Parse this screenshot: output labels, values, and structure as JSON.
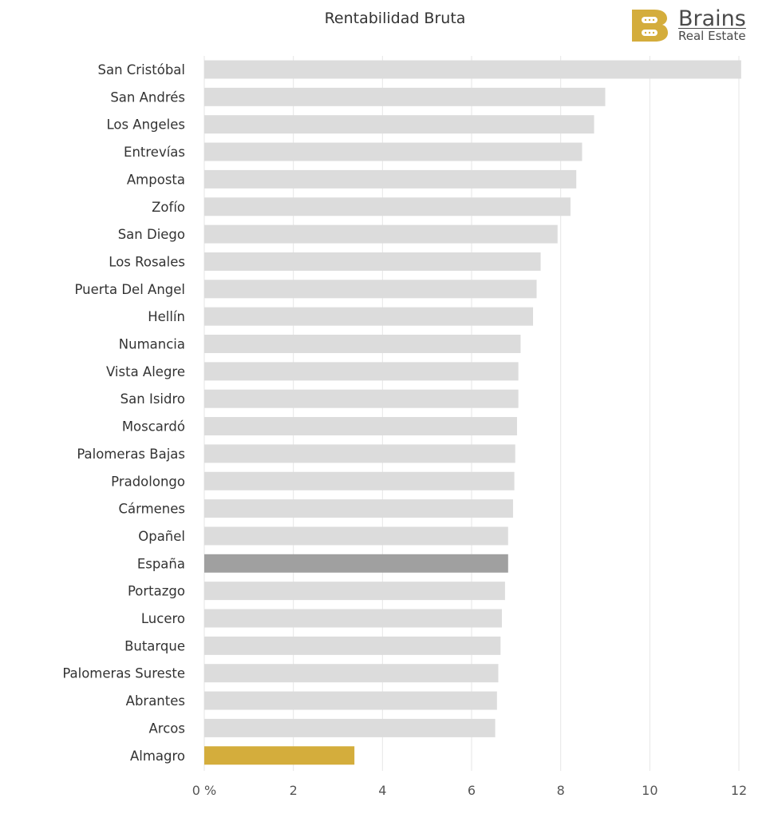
{
  "header": {
    "logo_name": "Brains",
    "logo_sub": "Real Estate",
    "logo_color": "#d4ad3c"
  },
  "chart_data": {
    "type": "bar",
    "orientation": "horizontal",
    "title": "Rentabilidad Bruta",
    "xlabel": "",
    "ylabel": "",
    "xlim": [
      0,
      12
    ],
    "ticks": [
      0,
      2,
      4,
      6,
      8,
      10,
      12
    ],
    "tick_labels": [
      "0 %",
      "2",
      "4",
      "6",
      "8",
      "10",
      "12"
    ],
    "grid": true,
    "legend": "none",
    "categories": [
      "San Cristóbal",
      "San Andrés",
      "Los Angeles",
      "Entrevías",
      "Amposta",
      "Zofío",
      "San Diego",
      "Los Rosales",
      "Puerta Del Angel",
      "Hellín",
      "Numancia",
      "Vista Alegre",
      "San Isidro",
      "Moscardó",
      "Palomeras Bajas",
      "Pradolongo",
      "Cármenes",
      "Opañel",
      "España",
      "Portazgo",
      "Lucero",
      "Butarque",
      "Palomeras Sureste",
      "Abrantes",
      "Arcos",
      "Almagro"
    ],
    "values": [
      12.05,
      9.0,
      8.75,
      8.48,
      8.35,
      8.22,
      7.93,
      7.55,
      7.46,
      7.38,
      7.1,
      7.05,
      7.05,
      7.02,
      6.98,
      6.96,
      6.93,
      6.82,
      6.82,
      6.75,
      6.68,
      6.65,
      6.6,
      6.57,
      6.53,
      3.37
    ],
    "colors": {
      "default": "#dcdcdc",
      "highlight_espana": "#a0a0a0",
      "highlight_almagro": "#d4ad3c",
      "grid": "#e6e6e6"
    },
    "bar_colors": [
      "default",
      "default",
      "default",
      "default",
      "default",
      "default",
      "default",
      "default",
      "default",
      "default",
      "default",
      "default",
      "default",
      "default",
      "default",
      "default",
      "default",
      "default",
      "highlight_espana",
      "default",
      "default",
      "default",
      "default",
      "default",
      "default",
      "highlight_almagro"
    ]
  }
}
